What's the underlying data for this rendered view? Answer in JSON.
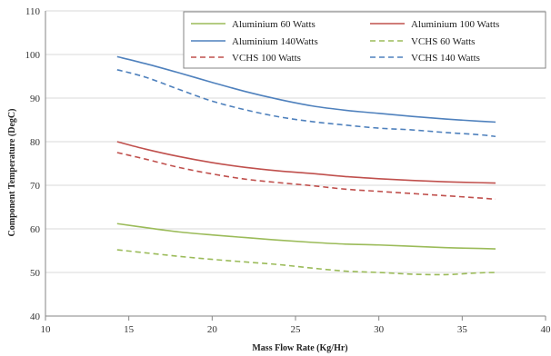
{
  "chart_data": {
    "type": "line",
    "title": "",
    "xlabel": "Mass Flow Rate (Kg/Hr)",
    "ylabel": "Component Temperature (DegC)",
    "xlim": [
      10,
      40
    ],
    "ylim": [
      40,
      110
    ],
    "xticks": [
      10,
      15,
      20,
      25,
      30,
      35,
      40
    ],
    "yticks": [
      40,
      50,
      60,
      70,
      80,
      90,
      100,
      110
    ],
    "grid": "horizontal",
    "legend_position": "top-right",
    "x": [
      14.3,
      16,
      18,
      20,
      22,
      24,
      26,
      28,
      30,
      32,
      34,
      36,
      37
    ],
    "series": [
      {
        "name": "Aluminium 60 Watts",
        "color": "#9bbb59",
        "dash": false,
        "values": [
          61.2,
          60.3,
          59.3,
          58.6,
          58.0,
          57.4,
          56.9,
          56.5,
          56.3,
          56.0,
          55.7,
          55.5,
          55.4
        ]
      },
      {
        "name": "Aluminium 100 Watts",
        "color": "#c0504d",
        "dash": false,
        "values": [
          80.0,
          78.3,
          76.6,
          75.2,
          74.1,
          73.3,
          72.7,
          72.0,
          71.5,
          71.1,
          70.8,
          70.6,
          70.5
        ]
      },
      {
        "name": "Aluminium 140Watts",
        "color": "#4f81bd",
        "dash": false,
        "values": [
          99.5,
          97.9,
          95.8,
          93.6,
          91.5,
          89.7,
          88.2,
          87.2,
          86.5,
          85.8,
          85.2,
          84.7,
          84.5
        ]
      },
      {
        "name": "VCHS 60 Watts",
        "color": "#9bbb59",
        "dash": true,
        "values": [
          55.2,
          54.5,
          53.7,
          53.0,
          52.4,
          51.8,
          51.0,
          50.3,
          50.0,
          49.6,
          49.5,
          49.9,
          50.0
        ]
      },
      {
        "name": "VCHS 100 Watts",
        "color": "#c0504d",
        "dash": true,
        "values": [
          77.5,
          76.0,
          74.1,
          72.6,
          71.4,
          70.6,
          69.9,
          69.1,
          68.6,
          68.1,
          67.6,
          67.1,
          66.8
        ]
      },
      {
        "name": "VCHS 140 Watts",
        "color": "#4f81bd",
        "dash": true,
        "values": [
          96.5,
          94.8,
          92.0,
          89.3,
          87.3,
          85.7,
          84.6,
          83.8,
          83.1,
          82.7,
          82.1,
          81.6,
          81.2
        ]
      }
    ]
  }
}
